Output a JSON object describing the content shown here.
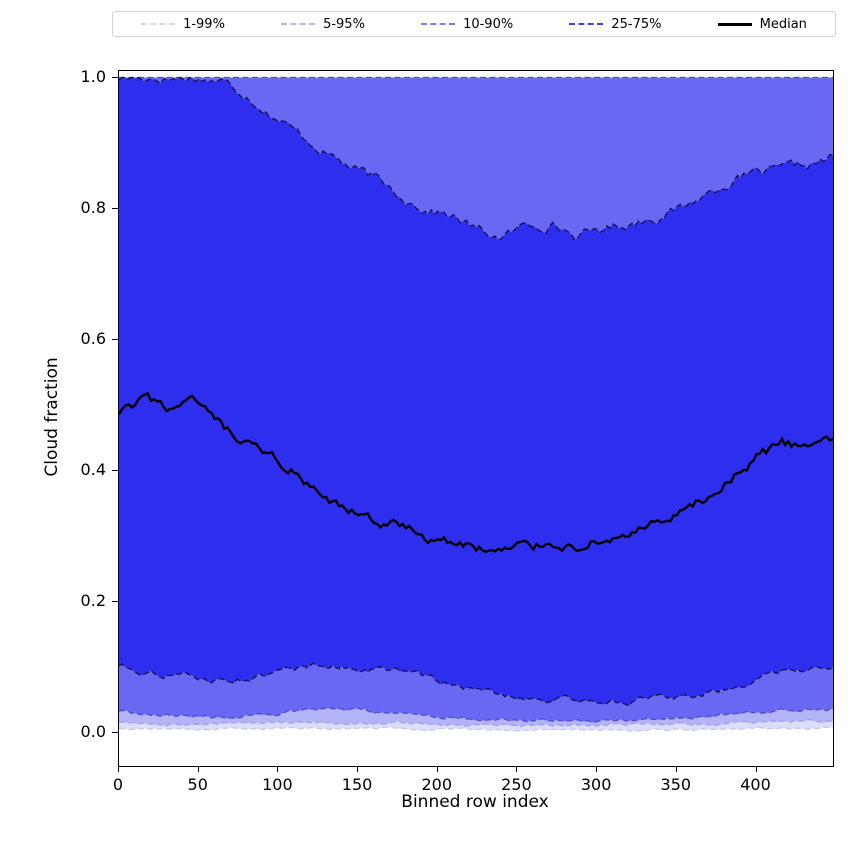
{
  "legend": {
    "entries": [
      {
        "label": "1-99%",
        "color": "#d6d6f2",
        "style": "dashed"
      },
      {
        "label": "5-95%",
        "color": "#b5b5ef",
        "style": "dashed"
      },
      {
        "label": "10-90%",
        "color": "#7f7fec",
        "style": "dashed"
      },
      {
        "label": "25-75%",
        "color": "#4444d8",
        "style": "dashed"
      },
      {
        "label": "Median",
        "color": "#000000",
        "style": "solid"
      }
    ]
  },
  "chart_data": {
    "type": "area",
    "xlabel": "Binned row index",
    "ylabel": "Cloud fraction",
    "xlim": [
      0,
      448
    ],
    "ylim": [
      -0.05,
      1.01
    ],
    "xticks": [
      0,
      50,
      100,
      150,
      200,
      250,
      300,
      350,
      400
    ],
    "yticks": [
      "0.0",
      "0.2",
      "0.4",
      "0.6",
      "0.8",
      "1.0"
    ],
    "grid": false,
    "legend_position": "top",
    "control_x_step": 16,
    "bands": [
      {
        "name": "1-99%",
        "fill": "#dcdcfb",
        "edge": "#c7c7f1",
        "jitter_lower": 0.0012,
        "jitter_upper": 0,
        "upper": 1.0,
        "lower": [
          0.008,
          0.007,
          0.007,
          0.006,
          0.006,
          0.007,
          0.007,
          0.008,
          0.008,
          0.008,
          0.007,
          0.007,
          0.006,
          0.006,
          0.005,
          0.005,
          0.005,
          0.005,
          0.005,
          0.005,
          0.005,
          0.006,
          0.006,
          0.006,
          0.007,
          0.007,
          0.008,
          0.008,
          0.008
        ]
      },
      {
        "name": "5-95%",
        "fill": "#b3b3f8",
        "edge": "#9f9fee",
        "jitter_lower": 0.0018,
        "jitter_upper": 0,
        "upper": 1.0,
        "lower": [
          0.018,
          0.016,
          0.015,
          0.014,
          0.014,
          0.015,
          0.016,
          0.017,
          0.018,
          0.017,
          0.016,
          0.016,
          0.015,
          0.014,
          0.013,
          0.012,
          0.012,
          0.012,
          0.012,
          0.012,
          0.013,
          0.013,
          0.014,
          0.015,
          0.016,
          0.017,
          0.018,
          0.019,
          0.019
        ]
      },
      {
        "name": "10-90%",
        "fill": "#6868f3",
        "edge": "#4a4ad6",
        "jitter_lower": 0.0022,
        "jitter_upper": 0,
        "upper": 1.0,
        "lower": [
          0.035,
          0.03,
          0.028,
          0.026,
          0.024,
          0.026,
          0.03,
          0.033,
          0.035,
          0.034,
          0.033,
          0.031,
          0.028,
          0.025,
          0.022,
          0.021,
          0.02,
          0.02,
          0.02,
          0.02,
          0.021,
          0.022,
          0.024,
          0.026,
          0.029,
          0.032,
          0.035,
          0.037,
          0.038
        ]
      },
      {
        "name": "25-75%",
        "fill": "#2e2eee",
        "edge": "#10104d",
        "jitter_lower": 0.004,
        "jitter_upper": 0.006,
        "upper": [
          1.0,
          1.0,
          1.0,
          1.0,
          0.995,
          0.975,
          0.945,
          0.915,
          0.89,
          0.865,
          0.845,
          0.822,
          0.8,
          0.79,
          0.768,
          0.755,
          0.775,
          0.778,
          0.757,
          0.77,
          0.778,
          0.788,
          0.8,
          0.822,
          0.843,
          0.853,
          0.858,
          0.865,
          0.878
        ],
        "lower": [
          0.105,
          0.095,
          0.09,
          0.085,
          0.08,
          0.085,
          0.09,
          0.1,
          0.105,
          0.101,
          0.098,
          0.094,
          0.085,
          0.075,
          0.066,
          0.06,
          0.055,
          0.051,
          0.05,
          0.049,
          0.05,
          0.052,
          0.056,
          0.061,
          0.07,
          0.085,
          0.095,
          0.101,
          0.106
        ]
      }
    ],
    "median": {
      "name": "Median",
      "color": "#000000",
      "jitter": 0.007,
      "values": [
        0.485,
        0.505,
        0.495,
        0.5,
        0.465,
        0.435,
        0.42,
        0.395,
        0.35,
        0.335,
        0.325,
        0.315,
        0.3,
        0.29,
        0.283,
        0.276,
        0.285,
        0.29,
        0.287,
        0.295,
        0.305,
        0.315,
        0.33,
        0.355,
        0.385,
        0.42,
        0.44,
        0.435,
        0.448
      ]
    }
  }
}
